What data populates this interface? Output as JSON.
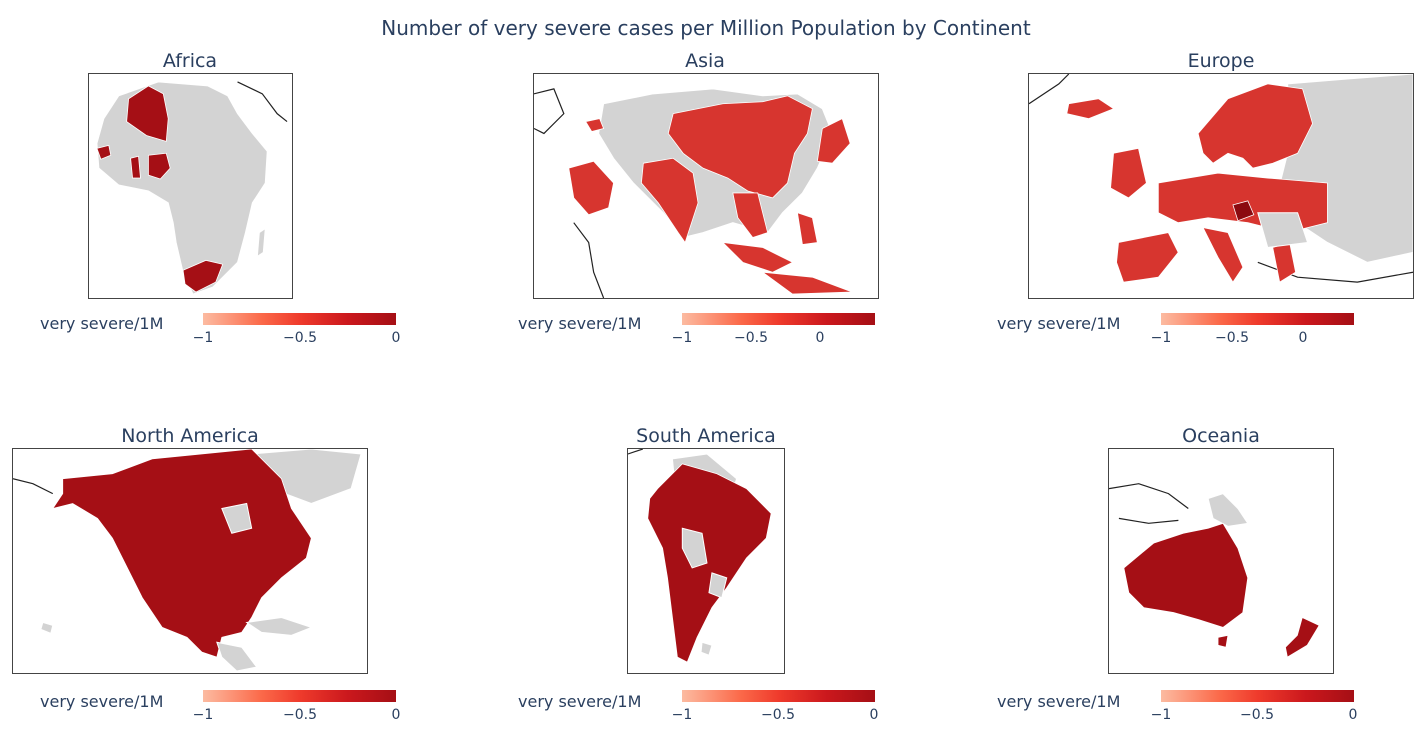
{
  "title": "Number of very severe cases per Million Population by Continent",
  "colors": {
    "low": "#fcbba1",
    "mid": "#ef3b2c",
    "high": "#a50f15",
    "no_data": "#d3d3d3"
  },
  "panels": [
    {
      "name": "Africa",
      "colorbar_title": "very severe/1M",
      "ticks": [
        "−1",
        "−0.5",
        "0"
      ]
    },
    {
      "name": "Asia",
      "colorbar_title": "very severe/1M",
      "ticks": [
        "−1",
        "−0.5",
        "0"
      ]
    },
    {
      "name": "Europe",
      "colorbar_title": "very severe/1M",
      "ticks": [
        "−1",
        "−0.5",
        "0"
      ]
    },
    {
      "name": "North America",
      "colorbar_title": "very severe/1M",
      "ticks": [
        "−1",
        "−0.5",
        "0"
      ]
    },
    {
      "name": "South America",
      "colorbar_title": "very severe/1M",
      "ticks": [
        "−1",
        "−0.5",
        "0"
      ]
    },
    {
      "name": "Oceania",
      "colorbar_title": "very severe/1M",
      "ticks": [
        "−1",
        "−0.5",
        "0"
      ]
    }
  ]
}
